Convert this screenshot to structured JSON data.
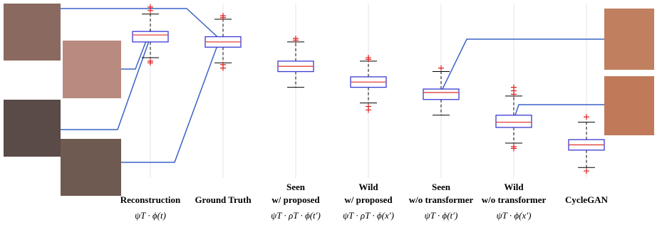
{
  "chart_data": {
    "type": "box",
    "categories": [
      {
        "lines": [
          "Reconstruction"
        ],
        "formula": "ψT · ϕ(t)"
      },
      {
        "lines": [
          "Ground Truth"
        ],
        "formula": null
      },
      {
        "lines": [
          "Seen",
          "w/ proposed"
        ],
        "formula": "ψT · ρT · ϕ(t′)"
      },
      {
        "lines": [
          "Wild",
          "w/ proposed"
        ],
        "formula": "ψT · ρT · ϕ(x′)"
      },
      {
        "lines": [
          "Seen",
          "w/o transformer"
        ],
        "formula": "ψT · ϕ(t′)"
      },
      {
        "lines": [
          "Wild",
          "w/o transformer"
        ],
        "formula": "ψT · ϕ(x′)"
      },
      {
        "lines": [
          "CycleGAN"
        ],
        "formula": null
      }
    ],
    "boxes": [
      {
        "whislo": 69,
        "q1": 78,
        "med": 82,
        "q3": 84,
        "whishi": 94,
        "fliers": [
          98,
          96,
          67,
          66
        ]
      },
      {
        "whislo": 66,
        "q1": 75,
        "med": 78,
        "q3": 81,
        "whishi": 91,
        "fliers": [
          93,
          92,
          65,
          63
        ]
      },
      {
        "whislo": 52,
        "q1": 61,
        "med": 64,
        "q3": 67,
        "whishi": 78,
        "fliers": [
          80,
          79
        ]
      },
      {
        "whislo": 43,
        "q1": 52,
        "med": 55,
        "q3": 58,
        "whishi": 67,
        "fliers": [
          69,
          68,
          41,
          39
        ]
      },
      {
        "whislo": 36,
        "q1": 45,
        "med": 49,
        "q3": 51,
        "whishi": 61,
        "fliers": [
          63
        ]
      },
      {
        "whislo": 20,
        "q1": 29,
        "med": 32,
        "q3": 36,
        "whishi": 47,
        "fliers": [
          52,
          50,
          48,
          18,
          17
        ]
      },
      {
        "whislo": 6,
        "q1": 16,
        "med": 19,
        "q3": 22,
        "whishi": 32,
        "fliers": [
          35,
          4
        ]
      }
    ],
    "ylim": [
      0,
      100
    ],
    "grid": true,
    "box_color": "#3a3ad6",
    "median_color": "#e0403a",
    "flier_color": "#e02020",
    "whisker_color": "#000000"
  }
}
